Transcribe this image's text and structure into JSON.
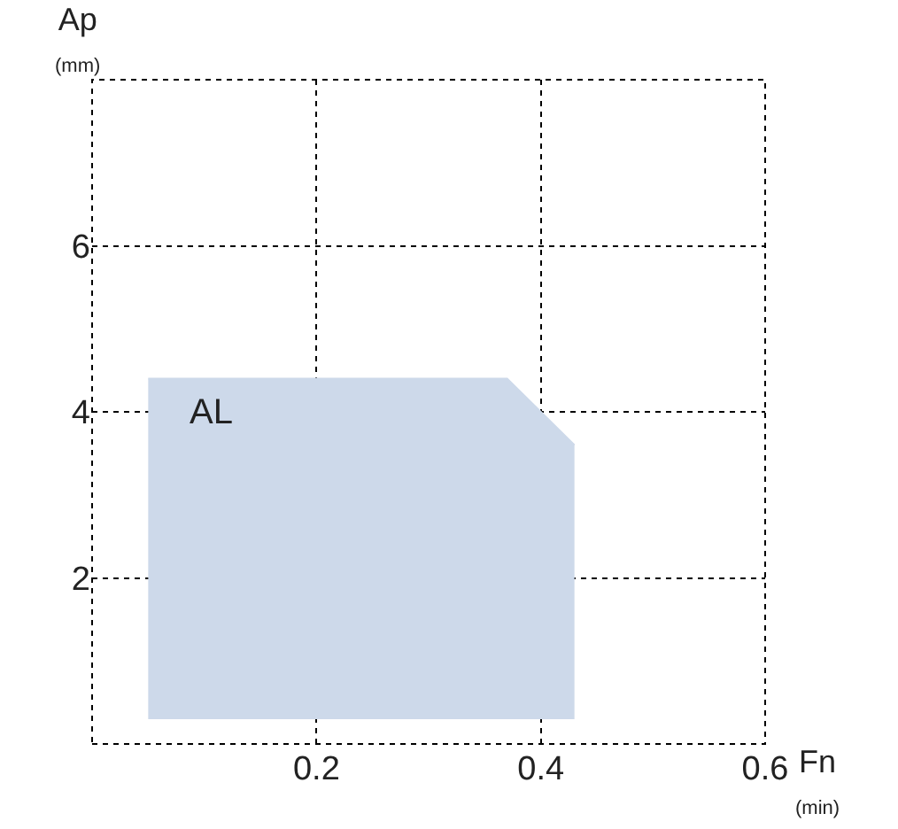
{
  "chart_data": {
    "type": "line",
    "xlabel": "Fn (min)",
    "ylabel": "Ap (mm)",
    "series": [
      {
        "x": [
          0.05,
          0.37,
          0.43
        ],
        "values": [
          4.4,
          4.4,
          3.6
        ],
        "lower": [
          0.3,
          0.3,
          0.3
        ],
        "upper": [
          4.4,
          4.4,
          3.6
        ],
        "color": "#cdd9ea"
      }
    ],
    "annotations": [
      "AL"
    ],
    "xlim": [
      0,
      0.6
    ],
    "ylim": [
      0,
      8
    ],
    "xticks": [
      0.2,
      0.4,
      0.6
    ],
    "yticks": [
      2,
      4,
      6
    ],
    "grid": true
  }
}
